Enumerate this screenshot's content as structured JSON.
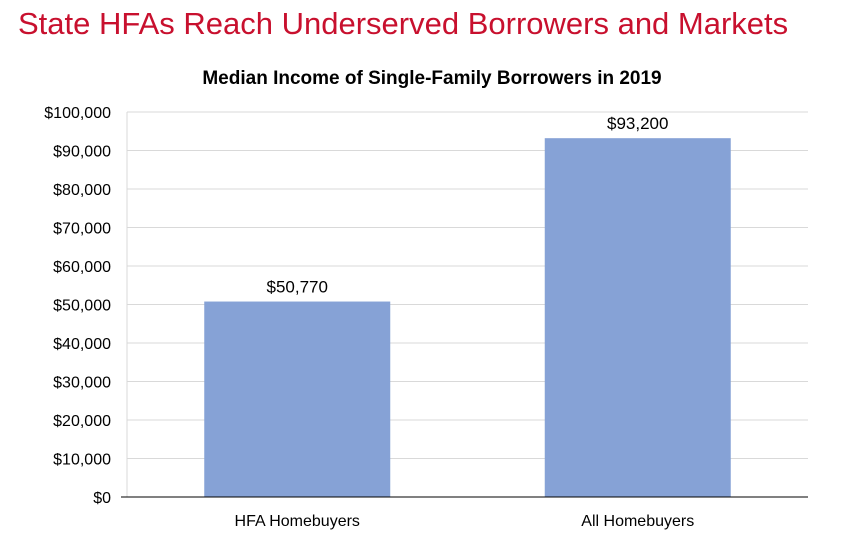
{
  "page": {
    "headline": "State HFAs Reach Underserved Borrowers and Markets"
  },
  "chart_data": {
    "type": "bar",
    "title": "Median Income of Single-Family Borrowers in 2019",
    "xlabel": "",
    "ylabel": "",
    "categories": [
      "HFA Homebuyers",
      "All Homebuyers"
    ],
    "values": [
      50770,
      93200
    ],
    "data_labels": [
      "$50,770",
      "$93,200"
    ],
    "ylim": [
      0,
      100000
    ],
    "yticks": [
      0,
      10000,
      20000,
      30000,
      40000,
      50000,
      60000,
      70000,
      80000,
      90000,
      100000
    ],
    "ytick_labels": [
      "$0",
      "$10,000",
      "$20,000",
      "$30,000",
      "$40,000",
      "$50,000",
      "$60,000",
      "$70,000",
      "$80,000",
      "$90,000",
      "$100,000"
    ],
    "grid": true,
    "bar_color": "#86a2d6",
    "grid_color": "#d9d9d9",
    "headline_color": "#c8102e"
  }
}
